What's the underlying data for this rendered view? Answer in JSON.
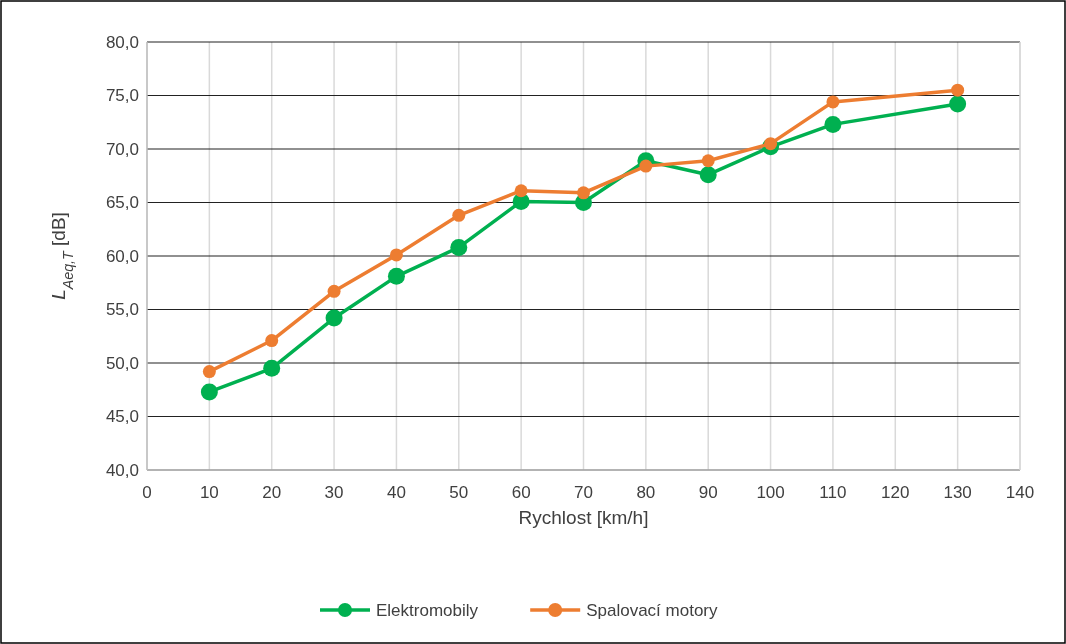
{
  "chart_data": {
    "type": "line",
    "xlabel": "Rychlost [km/h]",
    "ylabel": "L$_{Aeq,T}$ [dB]",
    "x": [
      10,
      20,
      30,
      40,
      50,
      60,
      70,
      80,
      90,
      100,
      110,
      130
    ],
    "series": [
      {
        "name": "Elektromobily",
        "color": "#00b050",
        "values": [
          47.3,
          49.5,
          54.2,
          58.1,
          60.8,
          65.1,
          65.0,
          68.9,
          67.6,
          70.2,
          72.3,
          74.2
        ]
      },
      {
        "name": "Spalovací motory",
        "color": "#ed7d31",
        "values": [
          49.2,
          52.1,
          56.7,
          60.1,
          63.8,
          66.1,
          65.9,
          68.4,
          68.9,
          70.5,
          74.4,
          75.5
        ]
      }
    ],
    "xlim": [
      0,
      140
    ],
    "xticks": [
      0,
      10,
      20,
      30,
      40,
      50,
      60,
      70,
      80,
      90,
      100,
      110,
      120,
      130,
      140
    ],
    "ylim": [
      40,
      80
    ],
    "yticks": [
      {
        "value": 40,
        "label": "40,0"
      },
      {
        "value": 45,
        "label": "45,0"
      },
      {
        "value": 50,
        "label": "50,0"
      },
      {
        "value": 55,
        "label": "55,0"
      },
      {
        "value": 60,
        "label": "60,0"
      },
      {
        "value": 65,
        "label": "65,0"
      },
      {
        "value": 70,
        "label": "70,0"
      },
      {
        "value": 75,
        "label": "75,0"
      },
      {
        "value": 80,
        "label": "80,0"
      }
    ],
    "grid": true,
    "legend": "bottom",
    "marker": "circle",
    "line_style": "solid"
  }
}
